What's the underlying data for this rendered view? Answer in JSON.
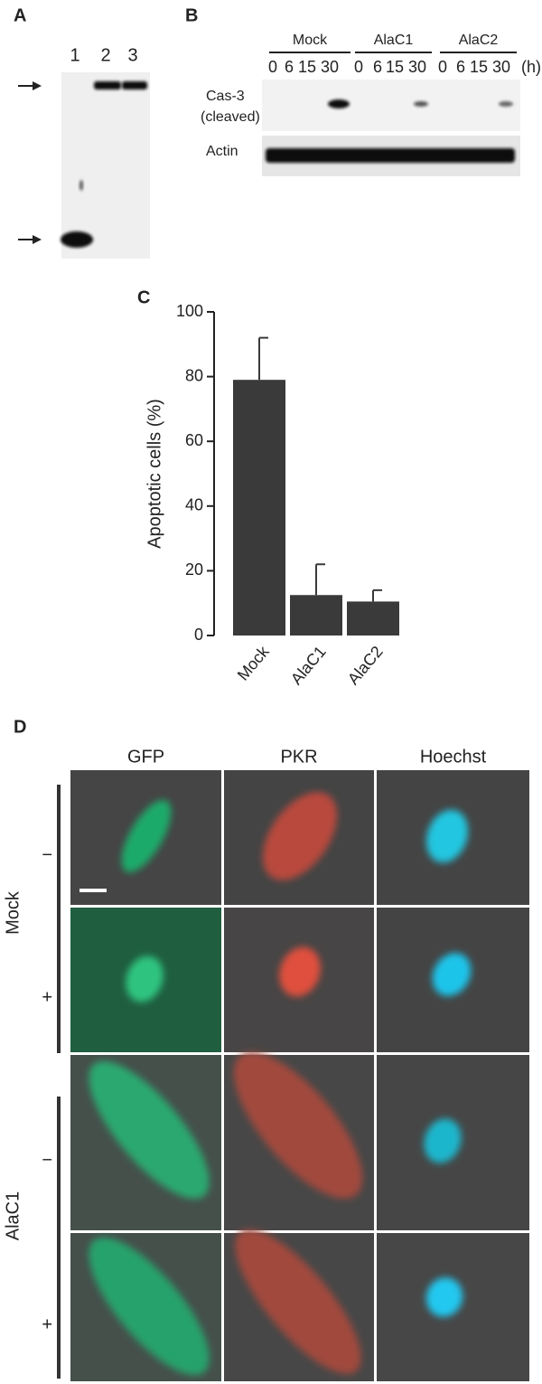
{
  "panel_a": {
    "label": "A",
    "lanes": [
      "1",
      "2",
      "3"
    ]
  },
  "panel_b": {
    "label": "B",
    "groups": [
      "Mock",
      "AlaC1",
      "AlaC2"
    ],
    "times": [
      "0",
      "6",
      "15",
      "30"
    ],
    "unit": "(h)",
    "cas3_label": [
      "Cas-3",
      "(cleaved)"
    ],
    "actin_label": "Actin"
  },
  "panel_c_label": "C",
  "chart_data": {
    "type": "bar",
    "ylabel": "Apoptotic cells (%)",
    "categories": [
      "Mock",
      "AlaC1",
      "AlaC2"
    ],
    "values": [
      79,
      12.5,
      10.5
    ],
    "errors": [
      13,
      9.5,
      3.5
    ],
    "color": "#3a3a3a",
    "ylim": [
      0,
      100
    ],
    "yticks": [
      0,
      20,
      40,
      60,
      80,
      100
    ]
  },
  "panel_d": {
    "label": "D",
    "columns": [
      "GFP",
      "PKR",
      "Hoechst"
    ],
    "groups": [
      {
        "name": "Mock",
        "rows": [
          "−",
          "+"
        ]
      },
      {
        "name": "AlaC1",
        "rows": [
          "−",
          "+"
        ]
      }
    ]
  }
}
